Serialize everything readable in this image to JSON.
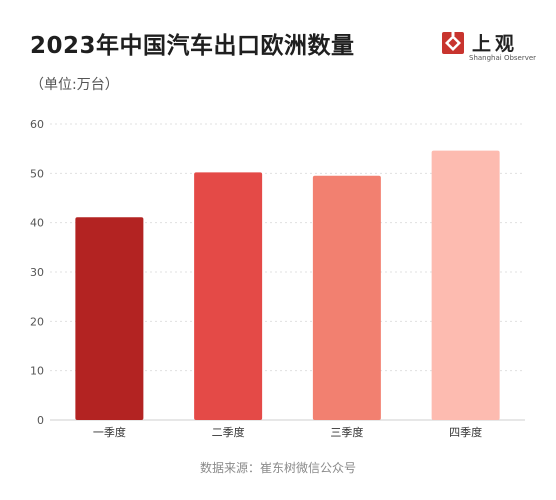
{
  "chart_data": {
    "type": "bar",
    "title": "2023年中国汽车出口欧洲数量",
    "subtitle": "（单位:万台）",
    "categories": [
      "一季度",
      "二季度",
      "三季度",
      "四季度"
    ],
    "values": [
      41.1,
      50.2,
      49.5,
      54.6
    ],
    "colors": [
      "#b32322",
      "#e44a47",
      "#f28070",
      "#fdbbb0"
    ],
    "ylim": [
      0,
      60
    ],
    "yticks": [
      "0",
      "10",
      "20",
      "30",
      "40",
      "50",
      "60"
    ],
    "grid": true,
    "xlabel": "",
    "ylabel": ""
  },
  "brand": {
    "name": "上观",
    "sub": "Shanghai Observer",
    "color": "#c8342e"
  },
  "source": "数据来源：崔东树微信公众号"
}
